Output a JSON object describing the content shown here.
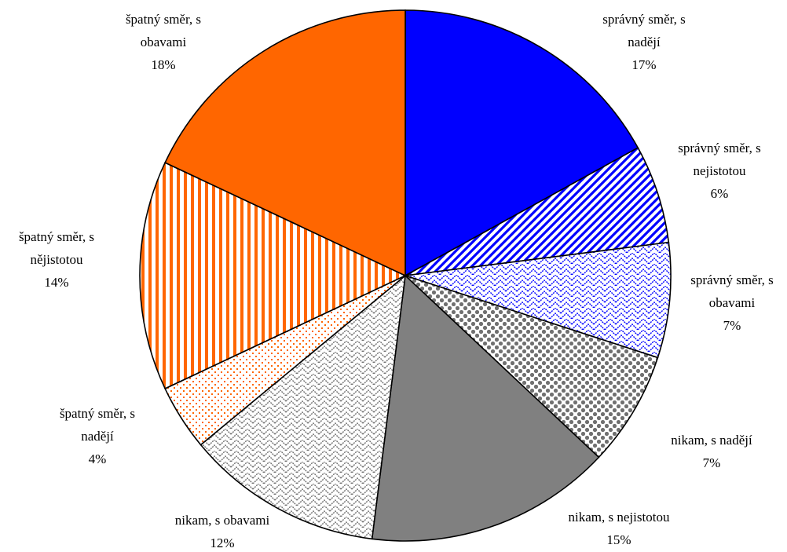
{
  "chart_data": {
    "type": "pie",
    "start_angle_deg": 0,
    "direction": "clockwise",
    "slices": [
      {
        "label_lines": [
          "správný směr, s",
          "nadějí"
        ],
        "value": 17,
        "value_label": "17%",
        "fill": "blue-solid"
      },
      {
        "label_lines": [
          "správný směr, s",
          "nejistotou"
        ],
        "value": 6,
        "value_label": "6%",
        "fill": "blue-diagonal"
      },
      {
        "label_lines": [
          "správný směr, s",
          "obavami"
        ],
        "value": 7,
        "value_label": "7%",
        "fill": "blue-zigzag"
      },
      {
        "label_lines": [
          "nikam, s nadějí"
        ],
        "value": 7,
        "value_label": "7%",
        "fill": "gray-dots-large"
      },
      {
        "label_lines": [
          "nikam, s nejistotou"
        ],
        "value": 15,
        "value_label": "15%",
        "fill": "gray-solid"
      },
      {
        "label_lines": [
          "nikam, s obavami"
        ],
        "value": 12,
        "value_label": "12%",
        "fill": "gray-zigzag"
      },
      {
        "label_lines": [
          "špatný směr, s",
          "nadějí"
        ],
        "value": 4,
        "value_label": "4%",
        "fill": "orange-dots-small"
      },
      {
        "label_lines": [
          "špatný směr, s",
          "nějistotou"
        ],
        "value": 14,
        "value_label": "14%",
        "fill": "orange-vertical"
      },
      {
        "label_lines": [
          "špatný směr, s",
          "obavami"
        ],
        "value": 18,
        "value_label": "18%",
        "fill": "orange-solid"
      }
    ],
    "colors": {
      "blue": "#0000ff",
      "gray": "#808080",
      "dark_gray": "#606060",
      "orange": "#ff6600",
      "outline": "#000000"
    },
    "legend": "none"
  }
}
